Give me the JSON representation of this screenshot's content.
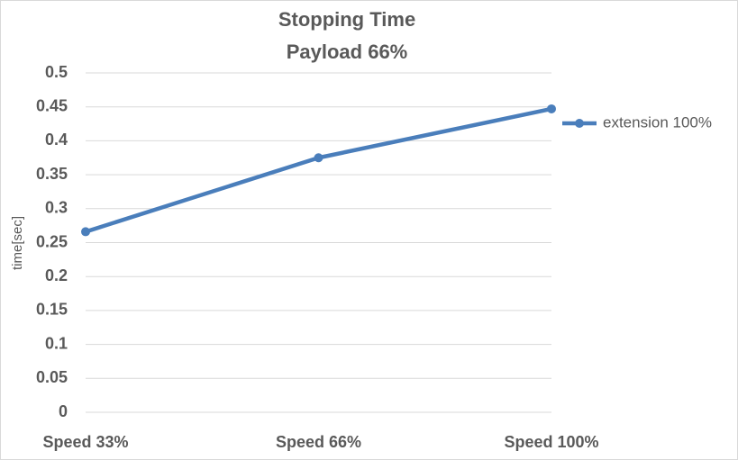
{
  "chart_data": {
    "type": "line",
    "title": "Stopping Time",
    "subtitle": "Payload 66%",
    "y_label": "time[sec]",
    "categories": [
      "Speed 33%",
      "Speed 66%",
      "Speed 100%"
    ],
    "series": [
      {
        "name": "extension 100%",
        "color": "#4a7ebb",
        "values": [
          0.266,
          0.375,
          0.447
        ]
      }
    ],
    "ylim": [
      0,
      0.5
    ],
    "yticks": [
      0,
      0.05,
      0.1,
      0.15,
      0.2,
      0.25,
      0.3,
      0.35,
      0.4,
      0.45,
      0.5
    ],
    "grid": true,
    "legend": "right"
  }
}
